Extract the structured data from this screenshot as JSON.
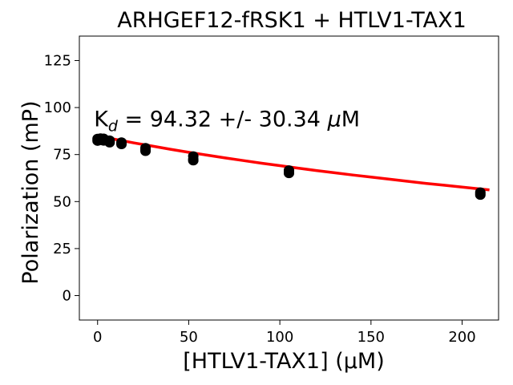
{
  "chart_data": {
    "type": "scatter",
    "title": "ARHGEF12-fRSK1 + HTLV1-TAX1",
    "xlabel": "[HTLV1-TAX1] (µM)",
    "ylabel": "Polarization (mP)",
    "xlim": [
      -10,
      220
    ],
    "ylim": [
      -13,
      138
    ],
    "xticks": [
      "0",
      "50",
      "100",
      "150",
      "200"
    ],
    "yticks": [
      "0",
      "25",
      "50",
      "75",
      "100",
      "125"
    ],
    "xtick_values": [
      0,
      50,
      100,
      150,
      200
    ],
    "ytick_values": [
      0,
      25,
      50,
      75,
      100,
      125
    ],
    "grid": false,
    "annotation": {
      "prefix": "K",
      "subscript": "d",
      "text": " = 94.32 +/- 30.34 ",
      "unit_symbol": "μ",
      "unit": "M",
      "x": -2,
      "y": 90
    },
    "points": {
      "color": "#000000",
      "x": [
        0,
        0,
        0,
        1.6,
        1.6,
        1.6,
        3.3,
        3.3,
        3.3,
        6.6,
        6.6,
        6.6,
        13.1,
        13.1,
        13.1,
        26.3,
        26.3,
        26.3,
        52.5,
        52.5,
        52.5,
        105,
        105,
        105,
        210,
        210,
        210
      ],
      "y": [
        83.5,
        82.8,
        82.2,
        83.7,
        83.1,
        82.6,
        83.6,
        82.9,
        82.3,
        82.6,
        81.9,
        81.3,
        81.6,
        80.9,
        80.4,
        78.6,
        77.6,
        76.8,
        74.2,
        72.6,
        71.8,
        66.7,
        65.8,
        65.0,
        55.0,
        54.2,
        53.5
      ]
    },
    "fit": {
      "color": "#ff0000",
      "x": [
        0,
        10,
        20,
        30,
        40,
        50,
        60,
        70,
        80,
        90,
        100,
        110,
        120,
        130,
        140,
        150,
        160,
        170,
        180,
        190,
        200,
        210,
        215
      ],
      "y": [
        85.0,
        83.0,
        81.2,
        79.5,
        77.8,
        76.2,
        74.7,
        73.2,
        71.8,
        70.4,
        69.1,
        67.8,
        66.5,
        65.3,
        64.1,
        63.0,
        61.9,
        60.8,
        59.7,
        58.7,
        57.7,
        56.7,
        56.2
      ]
    }
  }
}
